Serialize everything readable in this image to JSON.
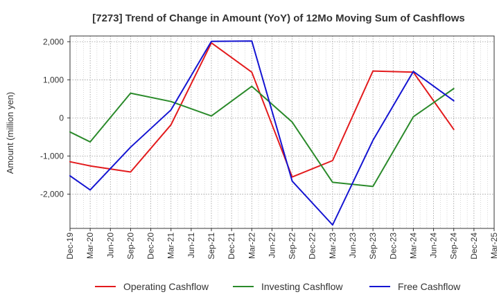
{
  "chart_data": {
    "type": "line",
    "title": "[7273]  Trend of Change in Amount (YoY) of 12Mo Moving Sum of Cashflows",
    "ylabel": "Amount (million yen)",
    "xlabel": "",
    "ylim": [
      -2900,
      2150
    ],
    "yticks": [
      2000,
      1000,
      0,
      -1000,
      -2000
    ],
    "ytick_labels": [
      "2,000",
      "1,000",
      "0",
      "-1,000",
      "-2,000"
    ],
    "categories": [
      "Dec-19",
      "Mar-20",
      "Jun-20",
      "Sep-20",
      "Dec-20",
      "Mar-21",
      "Jun-21",
      "Sep-21",
      "Dec-21",
      "Mar-22",
      "Jun-22",
      "Sep-22",
      "Dec-22",
      "Mar-23",
      "Jun-23",
      "Sep-23",
      "Dec-23",
      "Mar-24",
      "Jun-24",
      "Sep-24",
      "Dec-24",
      "Mar-25"
    ],
    "grid": true,
    "legend_position": "bottom",
    "series": [
      {
        "name": "Operating Cashflow",
        "color": "#e31a1c",
        "points": [
          [
            0,
            -1150
          ],
          [
            1,
            -1260
          ],
          [
            3,
            -1420
          ],
          [
            5,
            -180
          ],
          [
            7,
            1970
          ],
          [
            9,
            1200
          ],
          [
            11,
            -1550
          ],
          [
            13,
            -1120
          ],
          [
            15,
            1230
          ],
          [
            17,
            1200
          ],
          [
            19,
            -300
          ]
        ]
      },
      {
        "name": "Investing Cashflow",
        "color": "#2a8a2a",
        "points": [
          [
            0,
            -370
          ],
          [
            1,
            -630
          ],
          [
            3,
            650
          ],
          [
            5,
            430
          ],
          [
            7,
            50
          ],
          [
            9,
            830
          ],
          [
            11,
            -110
          ],
          [
            13,
            -1690
          ],
          [
            15,
            -1800
          ],
          [
            17,
            30
          ],
          [
            19,
            770
          ]
        ]
      },
      {
        "name": "Free Cashflow",
        "color": "#1414d2",
        "points": [
          [
            0,
            -1520
          ],
          [
            1,
            -1890
          ],
          [
            3,
            -770
          ],
          [
            5,
            210
          ],
          [
            7,
            2010
          ],
          [
            9,
            2020
          ],
          [
            11,
            -1660
          ],
          [
            13,
            -2810
          ],
          [
            15,
            -590
          ],
          [
            17,
            1220
          ],
          [
            19,
            450
          ]
        ]
      }
    ]
  }
}
